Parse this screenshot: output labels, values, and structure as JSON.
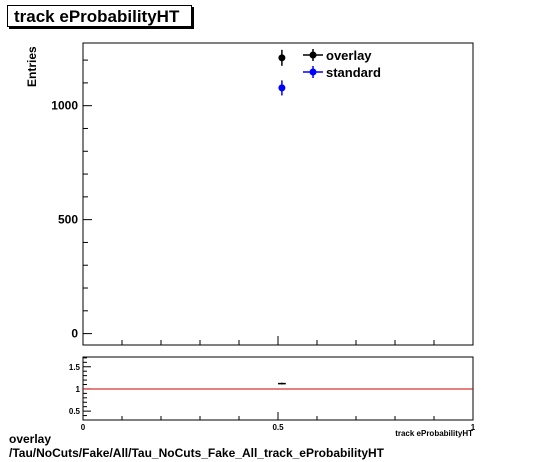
{
  "title": "track eProbabilityHT",
  "caption": {
    "line1": "overlay",
    "line2": "/Tau/NoCuts/Fake/All/Tau_NoCuts_Fake_All_track_eProbabilityHT"
  },
  "colors": {
    "overlay": "#000000",
    "standard": "#0000ff",
    "ratio_line": "#cc0000"
  },
  "chart_data": [
    {
      "type": "scatter",
      "ylabel": "Entries",
      "xlim": [
        0,
        1
      ],
      "ylim": [
        -50,
        1275
      ],
      "yticks": [
        0,
        500,
        1000
      ],
      "legend": "top-right",
      "series": [
        {
          "name": "overlay",
          "x": [
            0.51
          ],
          "y": [
            1210
          ],
          "yerr": [
            35
          ]
        },
        {
          "name": "standard",
          "x": [
            0.51
          ],
          "y": [
            1078
          ],
          "yerr": [
            33
          ]
        }
      ]
    },
    {
      "type": "scatter",
      "xlabel": "track eProbabilityHT",
      "xlim": [
        0,
        1
      ],
      "xticks": [
        0,
        0.5,
        1
      ],
      "xticklabels": [
        "0",
        "0.5",
        "1"
      ],
      "ylim": [
        0.3,
        1.72
      ],
      "yticks": [
        0.5,
        1,
        1.5
      ],
      "yticklabels": [
        "0.5",
        "1",
        "1.5"
      ],
      "reference_line": 1,
      "series": [
        {
          "x": [
            0.51
          ],
          "y": [
            1.12
          ],
          "xerr": [
            0.01
          ],
          "yerr": [
            0.02
          ]
        }
      ]
    }
  ]
}
